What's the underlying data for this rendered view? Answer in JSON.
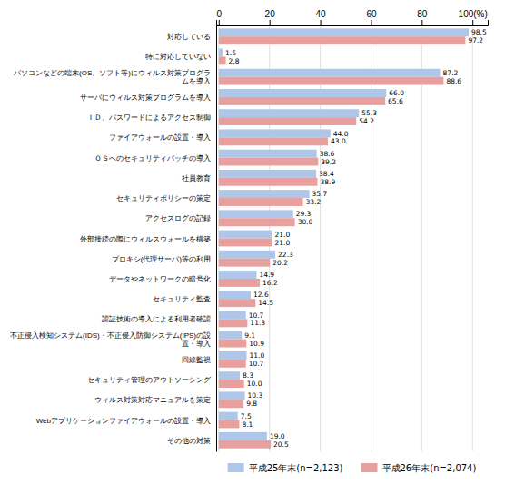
{
  "chart_data": {
    "type": "bar",
    "orientation": "horizontal",
    "categories": [
      "対応している",
      "特に対応していない",
      "パソコンなどの端末(OS、ソフト等)にウィルス対策プログラムを導入",
      "サーバにウィルス対策プログラムを導入",
      "ＩＤ、パスワードによるアクセス制御",
      "ファイアウォールの設置・導入",
      "ＯＳへのセキュリティパッチの導入",
      "社員教育",
      "セキュリティポリシーの策定",
      "アクセスログの記録",
      "外部接続の際にウィルスウォールを構築",
      "プロキシ(代理サーバ)等の利用",
      "データやネットワークの暗号化",
      "セキュリティ監査",
      "認証技術の導入による利用者確認",
      "不正侵入検知システム(IDS)・不正侵入防御システム(IPS)の設置・導入",
      "回線監視",
      "セキュリティ管理のアウトソーシング",
      "ウィルス対策対応マニュアルを策定",
      "Webアプリケーションファイアウォールの設置・導入",
      "その他の対策"
    ],
    "series": [
      {
        "name": "平成25年末(n=2,123)",
        "color": "#aec6e8",
        "values": [
          98.5,
          1.5,
          87.2,
          66.0,
          55.3,
          44.0,
          38.6,
          38.4,
          35.7,
          29.3,
          21.0,
          22.3,
          14.9,
          12.6,
          10.7,
          9.1,
          11.0,
          8.3,
          10.3,
          7.5,
          19.0
        ],
        "value_labels": [
          "98.5",
          "1.5",
          "87.2",
          "66.0",
          "55.3",
          "44.0",
          "38.6",
          "38.4",
          "35.7",
          "29.3",
          "21.0",
          "22.3",
          "14.9",
          "12.6",
          "10.7",
          "9.1",
          "11.0",
          "8.3",
          "10.3",
          "7.5",
          "19.0"
        ]
      },
      {
        "name": "平成26年末(n=2,074)",
        "color": "#e8a09e",
        "values": [
          97.2,
          2.8,
          88.6,
          65.6,
          54.2,
          43.0,
          39.2,
          38.9,
          33.2,
          30.0,
          21.0,
          20.2,
          16.2,
          14.5,
          11.3,
          10.9,
          10.7,
          10.0,
          9.8,
          8.1,
          20.5
        ],
        "value_labels": [
          "97.2",
          "2.8",
          "88.6",
          "65.6",
          "54.2",
          "43.0",
          "39.2",
          "38.9",
          "33.2",
          "30.0",
          "21.0",
          "20.2",
          "16.2",
          "14.5",
          "11.3",
          "10.9",
          "10.7",
          "10.0",
          "9.8",
          "8.1",
          "20.5"
        ]
      }
    ],
    "xlim": [
      -1,
      106
    ],
    "xticks": [
      0,
      20,
      40,
      60,
      80,
      {
        "value": 100,
        "label": "100(%)"
      }
    ],
    "grid": true,
    "legend": "bottom",
    "data_labels": true
  }
}
